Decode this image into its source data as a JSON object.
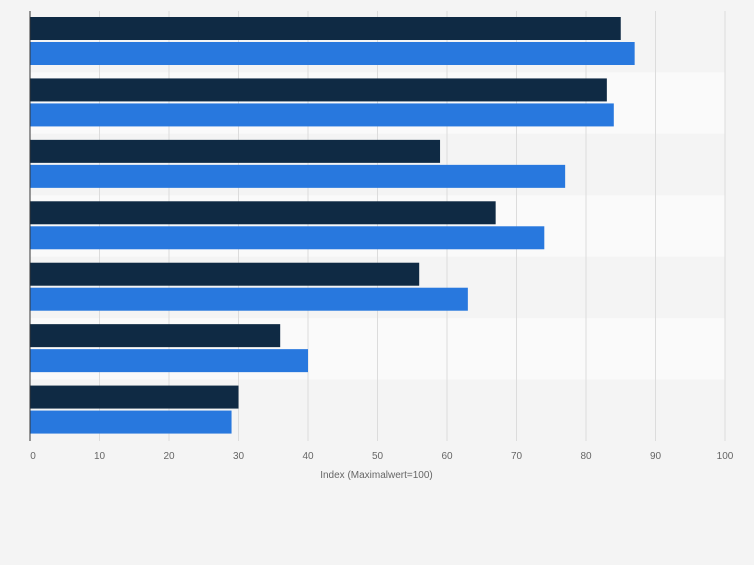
{
  "chart_data": {
    "type": "bar",
    "orientation": "horizontal",
    "categories": [
      "",
      "",
      "",
      "",
      "",
      "",
      ""
    ],
    "series": [
      {
        "color": "#0f2a44",
        "values": [
          85,
          83,
          59,
          67,
          56,
          36,
          30
        ]
      },
      {
        "color": "#2878de",
        "values": [
          87,
          84,
          77,
          74,
          63,
          40,
          29
        ]
      }
    ],
    "xlabel": "Index (Maximalwert=100)",
    "xlim": [
      0,
      100
    ],
    "xticks": [
      "0",
      "10",
      "20",
      "30",
      "40",
      "50",
      "60",
      "70",
      "80",
      "90",
      "100"
    ],
    "grid": true,
    "legend": "none"
  }
}
